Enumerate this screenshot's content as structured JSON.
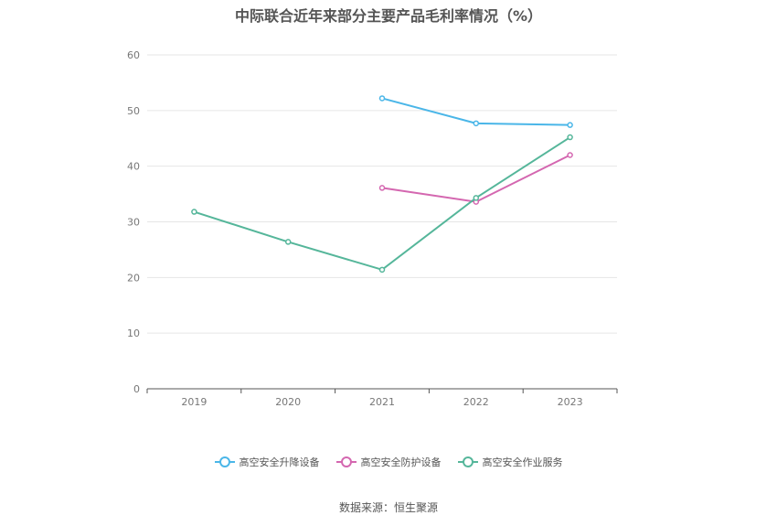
{
  "chart_data": {
    "type": "line",
    "title": "中际联合近年来部分主要产品毛利率情况（%）",
    "xlabel": "",
    "ylabel": "",
    "categories": [
      "2019",
      "2020",
      "2021",
      "2022",
      "2023"
    ],
    "ylim": [
      0,
      60
    ],
    "yticks": [
      0,
      10,
      20,
      30,
      40,
      50,
      60
    ],
    "grid": true,
    "legend_position": "bottom",
    "series": [
      {
        "name": "高空安全升降设备",
        "color": "#4ab6e8",
        "values": [
          null,
          null,
          52.2,
          47.7,
          47.4
        ]
      },
      {
        "name": "高空安全防护设备",
        "color": "#d467b0",
        "values": [
          null,
          null,
          36.1,
          33.6,
          42.0
        ]
      },
      {
        "name": "高空安全作业服务",
        "color": "#55b69a",
        "values": [
          31.8,
          26.4,
          21.4,
          34.3,
          45.2
        ]
      }
    ]
  },
  "source": "数据来源：恒生聚源"
}
